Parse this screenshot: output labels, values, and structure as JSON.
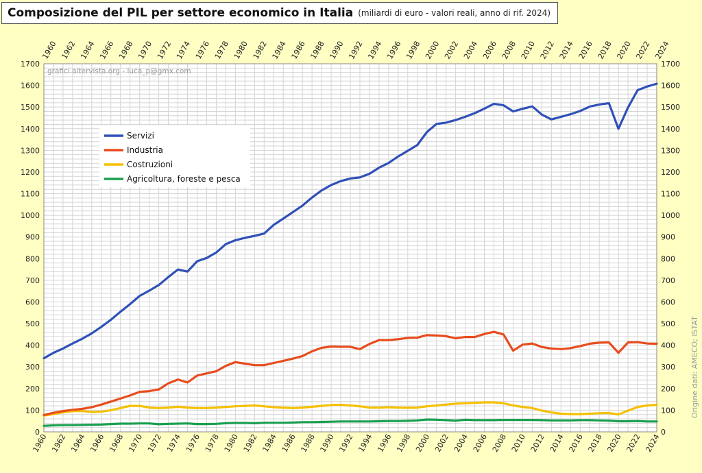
{
  "title": "Composizione del PIL per settore economico in Italia",
  "subtitle": "(miliardi di euro - valori reali, anno di rif. 2024)",
  "watermark": "grafici.altervista.org - luca_p@gmx.com",
  "source": "Origine dati: AMECO; ISTAT",
  "chart_data": {
    "type": "line",
    "title": "Composizione del PIL per settore economico in Italia",
    "subtitle": "(miliardi di euro - valori reali, anno di rif. 2024)",
    "xlabel": "",
    "ylabel": "",
    "xlim": [
      1960,
      2024
    ],
    "ylim": [
      0,
      1700
    ],
    "x_ticks": [
      "1960",
      "1962",
      "1964",
      "1966",
      "1968",
      "1970",
      "1972",
      "1974",
      "1976",
      "1978",
      "1980",
      "1982",
      "1984",
      "1986",
      "1988",
      "1990",
      "1992",
      "1994",
      "1996",
      "1998",
      "2000",
      "2002",
      "2004",
      "2006",
      "2008",
      "2010",
      "2012",
      "2014",
      "2016",
      "2018",
      "2020",
      "2022",
      "2024"
    ],
    "y_ticks": [
      "0",
      "100",
      "200",
      "300",
      "400",
      "500",
      "600",
      "700",
      "800",
      "900",
      "1000",
      "1100",
      "1200",
      "1300",
      "1400",
      "1500",
      "1600",
      "1700"
    ],
    "grid": true,
    "legend_position": "upper-left",
    "x": [
      1960,
      1961,
      1962,
      1963,
      1964,
      1965,
      1966,
      1967,
      1968,
      1969,
      1970,
      1971,
      1972,
      1973,
      1974,
      1975,
      1976,
      1977,
      1978,
      1979,
      1980,
      1981,
      1982,
      1983,
      1984,
      1985,
      1986,
      1987,
      1988,
      1989,
      1990,
      1991,
      1992,
      1993,
      1994,
      1995,
      1996,
      1997,
      1998,
      1999,
      2000,
      2001,
      2002,
      2003,
      2004,
      2005,
      2006,
      2007,
      2008,
      2009,
      2010,
      2011,
      2012,
      2013,
      2014,
      2015,
      2016,
      2017,
      2018,
      2019,
      2020,
      2021,
      2022,
      2023,
      2024
    ],
    "series": [
      {
        "name": "Servizi",
        "color": "#3050b8",
        "values": [
          340,
          365,
          385,
          408,
          430,
          455,
          485,
          518,
          555,
          590,
          628,
          652,
          678,
          715,
          750,
          740,
          788,
          803,
          828,
          867,
          885,
          896,
          905,
          916,
          956,
          985,
          1015,
          1045,
          1082,
          1115,
          1140,
          1158,
          1170,
          1175,
          1192,
          1220,
          1242,
          1272,
          1298,
          1325,
          1385,
          1422,
          1428,
          1440,
          1455,
          1472,
          1493,
          1515,
          1508,
          1480,
          1492,
          1503,
          1465,
          1443,
          1455,
          1467,
          1482,
          1502,
          1512,
          1518,
          1400,
          1498,
          1578,
          1595,
          1608
        ]
      },
      {
        "name": "Industria",
        "color": "#e84c1e",
        "values": [
          78,
          88,
          96,
          102,
          106,
          114,
          126,
          140,
          154,
          168,
          185,
          188,
          196,
          224,
          242,
          228,
          260,
          270,
          280,
          305,
          322,
          315,
          308,
          308,
          318,
          328,
          338,
          350,
          372,
          388,
          394,
          393,
          393,
          382,
          406,
          424,
          424,
          428,
          434,
          435,
          447,
          445,
          442,
          432,
          438,
          438,
          452,
          462,
          450,
          375,
          403,
          408,
          392,
          385,
          382,
          387,
          396,
          407,
          412,
          413,
          365,
          413,
          414,
          408,
          407
        ]
      },
      {
        "name": "Costruzioni",
        "color": "#f5c000",
        "values": [
          75,
          82,
          90,
          96,
          96,
          92,
          93,
          100,
          110,
          120,
          120,
          112,
          110,
          112,
          116,
          112,
          110,
          110,
          112,
          115,
          118,
          120,
          122,
          118,
          114,
          112,
          110,
          112,
          116,
          120,
          124,
          125,
          122,
          118,
          112,
          112,
          114,
          112,
          111,
          112,
          118,
          122,
          126,
          130,
          132,
          134,
          136,
          136,
          132,
          122,
          115,
          110,
          98,
          90,
          84,
          82,
          82,
          84,
          86,
          87,
          80,
          98,
          115,
          122,
          125
        ]
      },
      {
        "name": "Agricoltura, foreste e pesca",
        "color": "#1aa050",
        "values": [
          28,
          30,
          31,
          31,
          32,
          33,
          34,
          36,
          38,
          38,
          39,
          39,
          35,
          37,
          38,
          39,
          36,
          36,
          37,
          40,
          41,
          41,
          40,
          42,
          42,
          42,
          43,
          45,
          45,
          46,
          47,
          48,
          48,
          48,
          48,
          49,
          50,
          50,
          51,
          53,
          57,
          56,
          54,
          52,
          56,
          54,
          54,
          54,
          55,
          55,
          55,
          55,
          54,
          53,
          53,
          53,
          54,
          54,
          53,
          52,
          49,
          49,
          50,
          48,
          48
        ]
      }
    ]
  }
}
